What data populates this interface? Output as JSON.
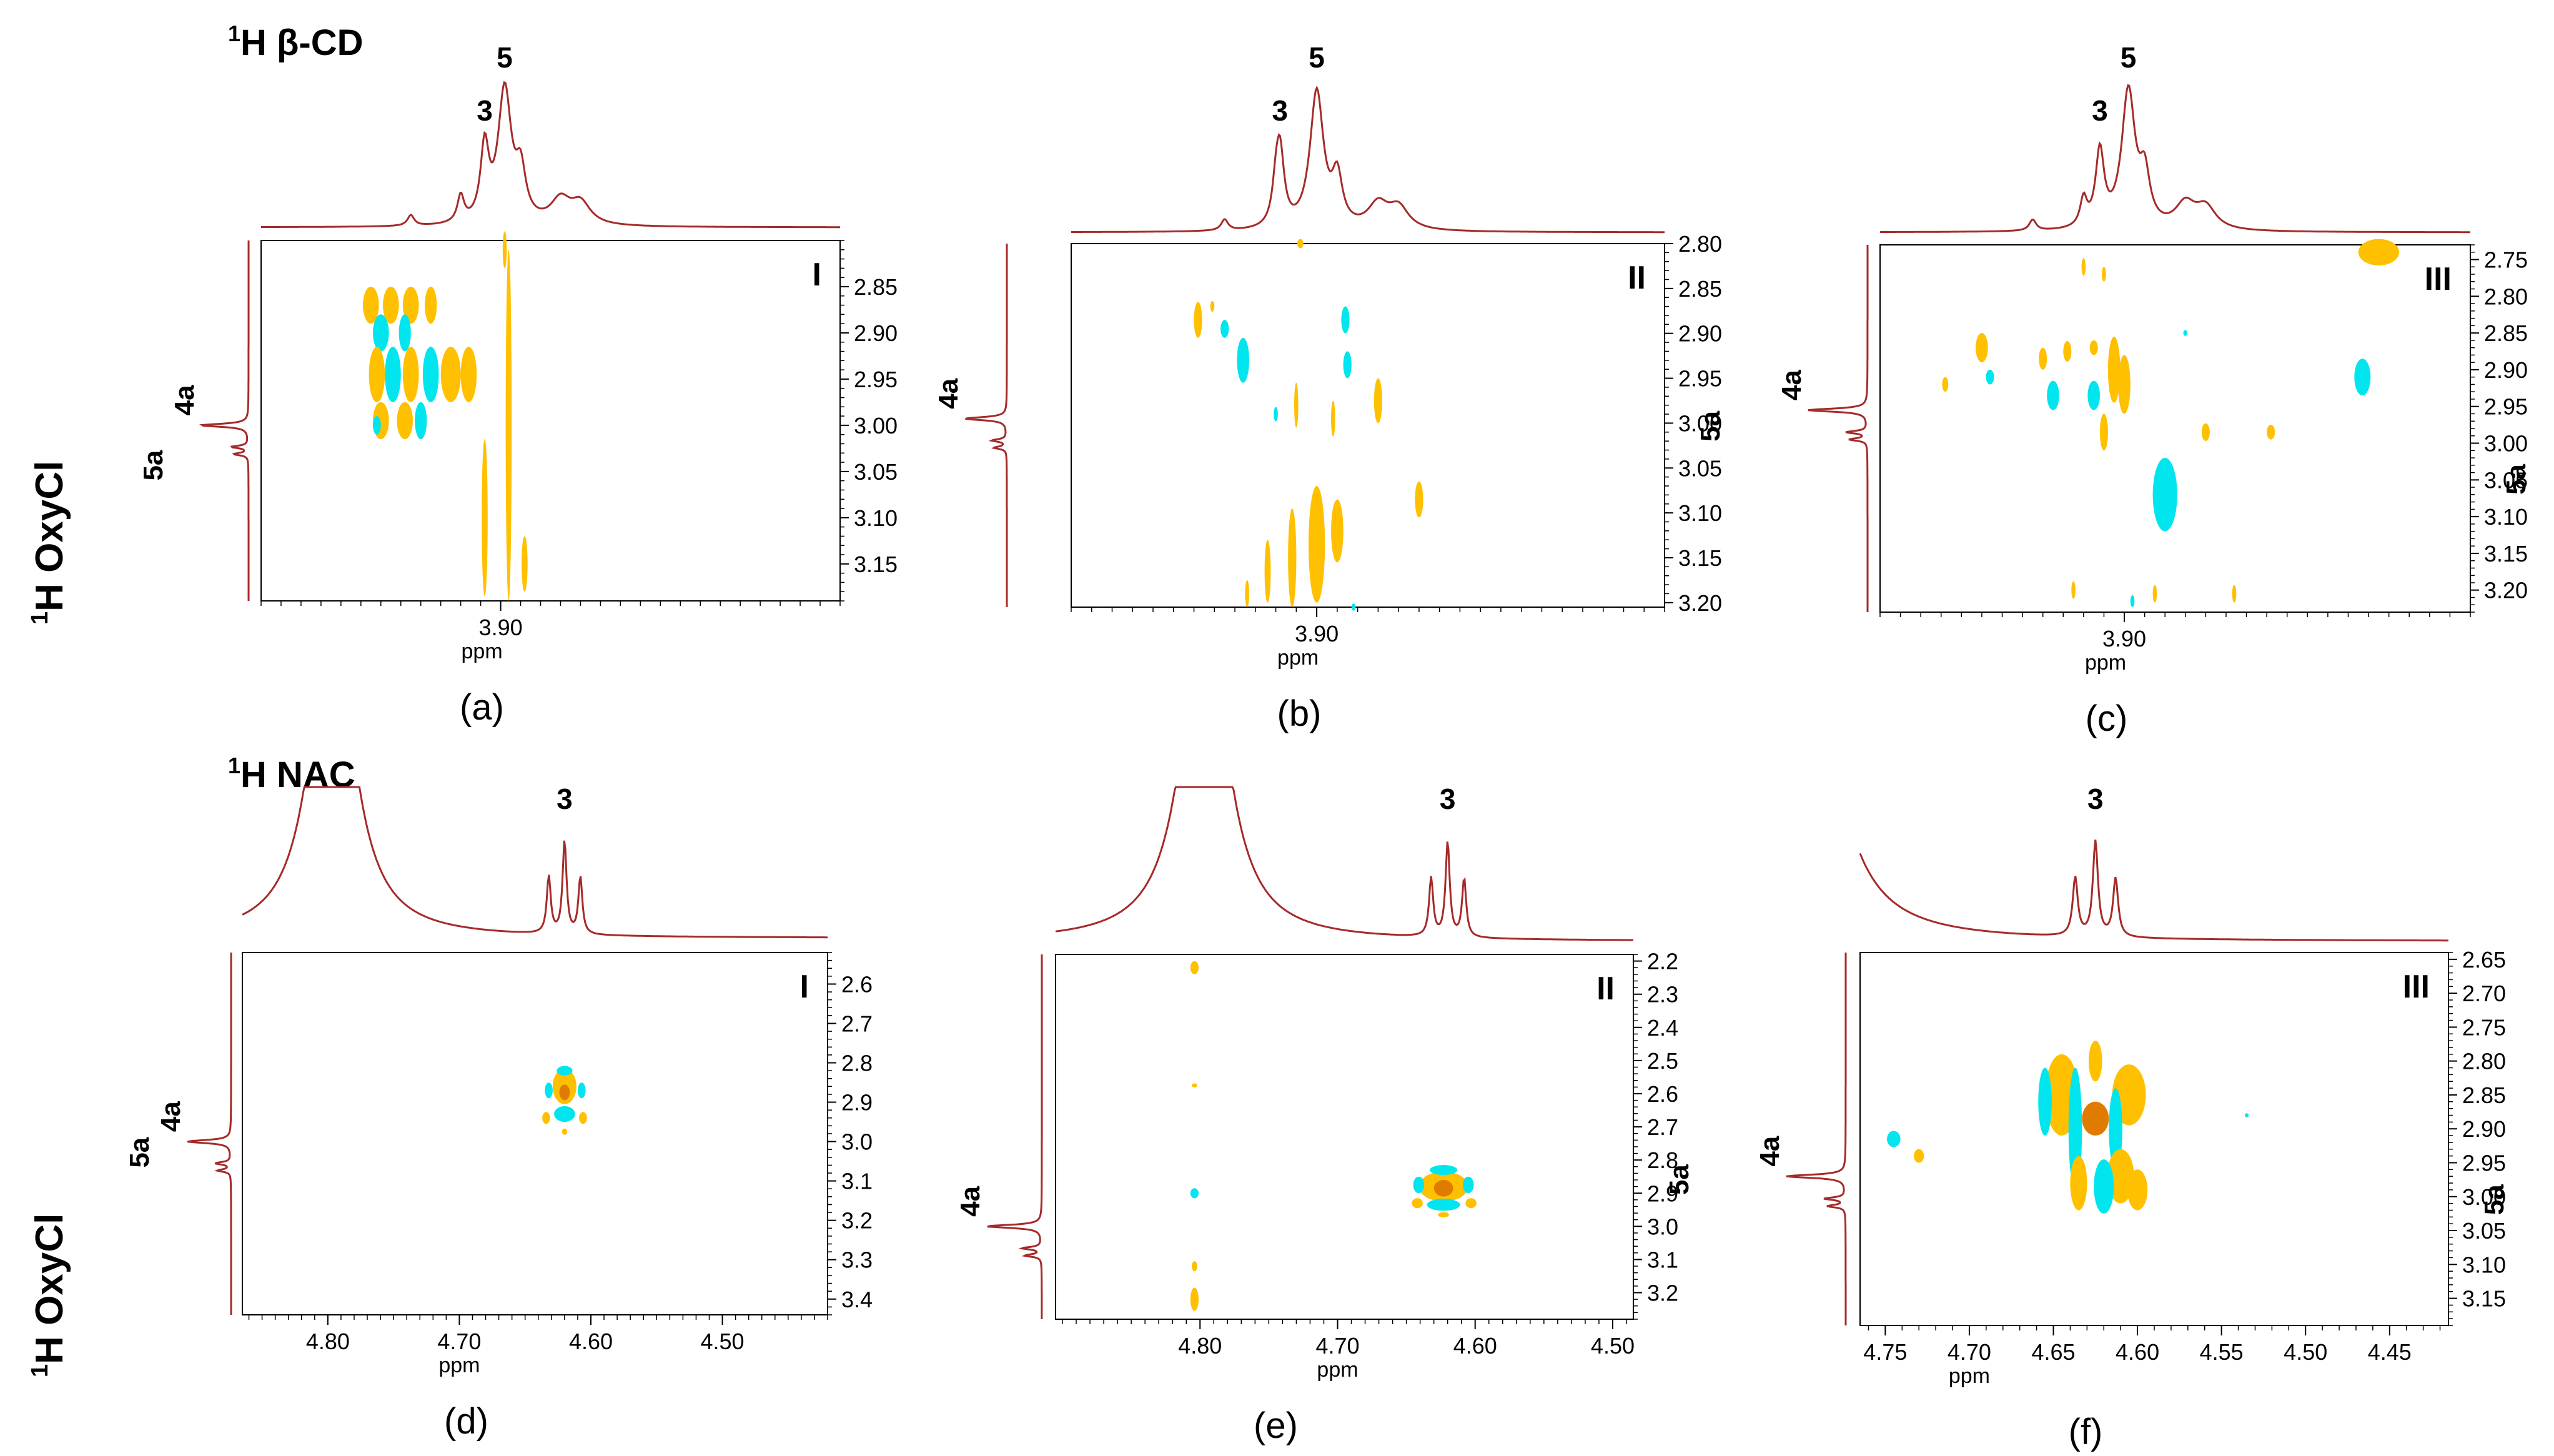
{
  "colors": {
    "trace": "#a52a2a",
    "positive": "#ffc000",
    "negative": "#00e5ee",
    "core": "#e07b00",
    "frame": "#000000"
  },
  "rows": [
    {
      "nucleus_label": "1H β-CD",
      "nucleus_sup": "1",
      "nucleus_text": "H β-CD",
      "side_sup": "1",
      "side_text": "H OxyCl"
    },
    {
      "nucleus_label": "1H NAC",
      "nucleus_sup": "1",
      "nucleus_text": "H NAC",
      "side_sup": "1",
      "side_text": "H OxyCl"
    }
  ],
  "chart_data": [
    {
      "type": "heatmap",
      "panel": "(a)",
      "roman": "I",
      "xlabel": "ppm",
      "x_ticks": [
        "3.90"
      ],
      "x_tick_values": [
        3.9
      ],
      "xlim": [
        4.02,
        3.73
      ],
      "y_ticks": [
        "2.85",
        "2.90",
        "2.95",
        "3.00",
        "3.05",
        "3.10",
        "3.15"
      ],
      "y_tick_values": [
        2.85,
        2.9,
        2.95,
        3.0,
        3.05,
        3.1,
        3.15
      ],
      "ylim": [
        2.8,
        3.19
      ],
      "top_peaks": [
        {
          "label": "3",
          "ppm": 3.908
        },
        {
          "label": "5",
          "ppm": 3.898
        }
      ],
      "side_peaks": [
        {
          "label": "4a",
          "ppm": 3.0
        },
        {
          "label": "5a",
          "ppm": 3.04
        }
      ],
      "blobs": [
        {
          "x": 3.965,
          "y": 2.87,
          "rx": 0.004,
          "ry": 0.02,
          "sign": 1
        },
        {
          "x": 3.955,
          "y": 2.87,
          "rx": 0.004,
          "ry": 0.02,
          "sign": 1
        },
        {
          "x": 3.945,
          "y": 2.87,
          "rx": 0.004,
          "ry": 0.02,
          "sign": 1
        },
        {
          "x": 3.935,
          "y": 2.87,
          "rx": 0.003,
          "ry": 0.02,
          "sign": 1
        },
        {
          "x": 3.96,
          "y": 2.9,
          "rx": 0.004,
          "ry": 0.02,
          "sign": -1
        },
        {
          "x": 3.948,
          "y": 2.9,
          "rx": 0.003,
          "ry": 0.02,
          "sign": -1
        },
        {
          "x": 3.962,
          "y": 2.945,
          "rx": 0.004,
          "ry": 0.03,
          "sign": 1
        },
        {
          "x": 3.954,
          "y": 2.945,
          "rx": 0.004,
          "ry": 0.03,
          "sign": -1
        },
        {
          "x": 3.945,
          "y": 2.945,
          "rx": 0.004,
          "ry": 0.03,
          "sign": 1
        },
        {
          "x": 3.935,
          "y": 2.945,
          "rx": 0.004,
          "ry": 0.03,
          "sign": -1
        },
        {
          "x": 3.925,
          "y": 2.945,
          "rx": 0.005,
          "ry": 0.03,
          "sign": 1
        },
        {
          "x": 3.916,
          "y": 2.945,
          "rx": 0.004,
          "ry": 0.03,
          "sign": 1
        },
        {
          "x": 3.96,
          "y": 2.995,
          "rx": 0.004,
          "ry": 0.02,
          "sign": 1
        },
        {
          "x": 3.948,
          "y": 2.995,
          "rx": 0.004,
          "ry": 0.02,
          "sign": 1
        },
        {
          "x": 3.94,
          "y": 2.995,
          "rx": 0.003,
          "ry": 0.02,
          "sign": -1
        },
        {
          "x": 3.962,
          "y": 3.0,
          "rx": 0.002,
          "ry": 0.01,
          "sign": -1
        },
        {
          "x": 3.908,
          "y": 3.1,
          "rx": 0.0015,
          "ry": 0.085,
          "sign": 1
        },
        {
          "x": 3.896,
          "y": 3.0,
          "rx": 0.0015,
          "ry": 0.19,
          "sign": 1
        },
        {
          "x": 3.898,
          "y": 2.81,
          "rx": 0.001,
          "ry": 0.02,
          "sign": 1
        },
        {
          "x": 3.888,
          "y": 3.15,
          "rx": 0.0015,
          "ry": 0.03,
          "sign": 1
        }
      ]
    },
    {
      "type": "heatmap",
      "panel": "(b)",
      "roman": "II",
      "xlabel": "ppm",
      "x_ticks": [
        "3.90"
      ],
      "x_tick_values": [
        3.9
      ],
      "xlim": [
        4.02,
        3.73
      ],
      "y_ticks": [
        "2.80",
        "2.85",
        "2.90",
        "2.95",
        "3.00",
        "3.05",
        "3.10",
        "3.15",
        "3.20"
      ],
      "y_tick_values": [
        2.8,
        2.85,
        2.9,
        2.95,
        3.0,
        3.05,
        3.1,
        3.15,
        3.2
      ],
      "ylim": [
        2.8,
        3.205
      ],
      "top_peaks": [
        {
          "label": "3",
          "ppm": 3.918
        },
        {
          "label": "5",
          "ppm": 3.9
        }
      ],
      "side_peaks": [
        {
          "label": "4a",
          "ppm": 2.995
        },
        {
          "label": "5a",
          "ppm": 3.0
        }
      ],
      "blobs": [
        {
          "x": 3.958,
          "y": 2.885,
          "rx": 0.002,
          "ry": 0.02,
          "sign": 1
        },
        {
          "x": 3.951,
          "y": 2.87,
          "rx": 0.001,
          "ry": 0.006,
          "sign": 1
        },
        {
          "x": 3.945,
          "y": 2.895,
          "rx": 0.002,
          "ry": 0.01,
          "sign": -1
        },
        {
          "x": 3.936,
          "y": 2.93,
          "rx": 0.003,
          "ry": 0.025,
          "sign": -1
        },
        {
          "x": 3.92,
          "y": 2.99,
          "rx": 0.001,
          "ry": 0.008,
          "sign": -1
        },
        {
          "x": 3.91,
          "y": 2.98,
          "rx": 0.001,
          "ry": 0.025,
          "sign": 1
        },
        {
          "x": 3.886,
          "y": 2.885,
          "rx": 0.002,
          "ry": 0.015,
          "sign": -1
        },
        {
          "x": 3.885,
          "y": 2.935,
          "rx": 0.002,
          "ry": 0.015,
          "sign": -1
        },
        {
          "x": 3.892,
          "y": 2.995,
          "rx": 0.001,
          "ry": 0.02,
          "sign": 1
        },
        {
          "x": 3.87,
          "y": 2.975,
          "rx": 0.002,
          "ry": 0.025,
          "sign": 1
        },
        {
          "x": 3.85,
          "y": 3.085,
          "rx": 0.002,
          "ry": 0.02,
          "sign": 1
        },
        {
          "x": 3.9,
          "y": 3.135,
          "rx": 0.004,
          "ry": 0.065,
          "sign": 1
        },
        {
          "x": 3.912,
          "y": 3.15,
          "rx": 0.002,
          "ry": 0.055,
          "sign": 1
        },
        {
          "x": 3.89,
          "y": 3.12,
          "rx": 0.003,
          "ry": 0.035,
          "sign": 1
        },
        {
          "x": 3.924,
          "y": 3.165,
          "rx": 0.0015,
          "ry": 0.035,
          "sign": 1
        },
        {
          "x": 3.934,
          "y": 3.19,
          "rx": 0.001,
          "ry": 0.015,
          "sign": 1
        },
        {
          "x": 3.908,
          "y": 2.8,
          "rx": 0.0015,
          "ry": 0.005,
          "sign": 1
        },
        {
          "x": 3.882,
          "y": 3.205,
          "rx": 0.001,
          "ry": 0.004,
          "sign": -1
        }
      ]
    },
    {
      "type": "heatmap",
      "panel": "(c)",
      "roman": "III",
      "xlabel": "ppm",
      "x_ticks": [
        "3.90"
      ],
      "x_tick_values": [
        3.9
      ],
      "xlim": [
        4.02,
        3.73
      ],
      "y_ticks": [
        "2.75",
        "2.80",
        "2.85",
        "2.90",
        "2.95",
        "3.00",
        "3.05",
        "3.10",
        "3.15",
        "3.20"
      ],
      "y_tick_values": [
        2.75,
        2.8,
        2.85,
        2.9,
        2.95,
        3.0,
        3.05,
        3.1,
        3.15,
        3.2
      ],
      "ylim": [
        2.73,
        3.23
      ],
      "top_peaks": [
        {
          "label": "3",
          "ppm": 3.912
        },
        {
          "label": "5",
          "ppm": 3.898
        }
      ],
      "side_peaks": [
        {
          "label": "4a",
          "ppm": 2.955
        },
        {
          "label": "5a",
          "ppm": 3.045
        }
      ],
      "blobs": [
        {
          "x": 3.775,
          "y": 2.74,
          "rx": 0.01,
          "ry": 0.018,
          "sign": 1
        },
        {
          "x": 3.92,
          "y": 2.76,
          "rx": 0.001,
          "ry": 0.012,
          "sign": 1
        },
        {
          "x": 3.91,
          "y": 2.77,
          "rx": 0.001,
          "ry": 0.01,
          "sign": 1
        },
        {
          "x": 3.97,
          "y": 2.87,
          "rx": 0.003,
          "ry": 0.02,
          "sign": 1
        },
        {
          "x": 3.966,
          "y": 2.91,
          "rx": 0.002,
          "ry": 0.01,
          "sign": -1
        },
        {
          "x": 3.988,
          "y": 2.92,
          "rx": 0.0015,
          "ry": 0.01,
          "sign": 1
        },
        {
          "x": 3.94,
          "y": 2.885,
          "rx": 0.002,
          "ry": 0.015,
          "sign": 1
        },
        {
          "x": 3.928,
          "y": 2.875,
          "rx": 0.002,
          "ry": 0.014,
          "sign": 1
        },
        {
          "x": 3.935,
          "y": 2.935,
          "rx": 0.003,
          "ry": 0.02,
          "sign": -1
        },
        {
          "x": 3.915,
          "y": 2.935,
          "rx": 0.003,
          "ry": 0.02,
          "sign": -1
        },
        {
          "x": 3.905,
          "y": 2.9,
          "rx": 0.003,
          "ry": 0.045,
          "sign": 1
        },
        {
          "x": 3.9,
          "y": 2.92,
          "rx": 0.003,
          "ry": 0.04,
          "sign": 1
        },
        {
          "x": 3.915,
          "y": 2.87,
          "rx": 0.002,
          "ry": 0.01,
          "sign": 1
        },
        {
          "x": 3.87,
          "y": 2.85,
          "rx": 0.001,
          "ry": 0.004,
          "sign": -1
        },
        {
          "x": 3.91,
          "y": 2.985,
          "rx": 0.002,
          "ry": 0.025,
          "sign": 1
        },
        {
          "x": 3.88,
          "y": 3.07,
          "rx": 0.006,
          "ry": 0.05,
          "sign": -1
        },
        {
          "x": 3.86,
          "y": 2.985,
          "rx": 0.002,
          "ry": 0.012,
          "sign": 1
        },
        {
          "x": 3.828,
          "y": 2.985,
          "rx": 0.002,
          "ry": 0.01,
          "sign": 1
        },
        {
          "x": 3.783,
          "y": 2.91,
          "rx": 0.004,
          "ry": 0.025,
          "sign": -1
        },
        {
          "x": 3.925,
          "y": 3.2,
          "rx": 0.001,
          "ry": 0.012,
          "sign": 1
        },
        {
          "x": 3.896,
          "y": 3.215,
          "rx": 0.001,
          "ry": 0.008,
          "sign": -1
        },
        {
          "x": 3.885,
          "y": 3.205,
          "rx": 0.001,
          "ry": 0.012,
          "sign": 1
        },
        {
          "x": 3.846,
          "y": 3.205,
          "rx": 0.001,
          "ry": 0.012,
          "sign": 1
        }
      ]
    },
    {
      "type": "heatmap",
      "panel": "(d)",
      "roman": "I",
      "xlabel": "ppm",
      "x_ticks": [
        "4.80",
        "4.70",
        "4.60",
        "4.50"
      ],
      "x_tick_values": [
        4.8,
        4.7,
        4.6,
        4.5
      ],
      "xlim": [
        4.865,
        4.42
      ],
      "y_ticks": [
        "2.6",
        "2.7",
        "2.8",
        "2.9",
        "3.0",
        "3.1",
        "3.2",
        "3.3",
        "3.4"
      ],
      "y_tick_values": [
        2.6,
        2.7,
        2.8,
        2.9,
        3.0,
        3.1,
        3.2,
        3.3,
        3.4
      ],
      "ylim": [
        2.52,
        3.44
      ],
      "top_peaks": [
        {
          "label": "3",
          "ppm": 4.62
        }
      ],
      "side_peaks": [
        {
          "label": "4a",
          "ppm": 3.0
        },
        {
          "label": "5a",
          "ppm": 3.02
        }
      ],
      "blobs": [
        {
          "x": 4.62,
          "y": 2.86,
          "rx": 0.009,
          "ry": 0.045,
          "sign": 1
        },
        {
          "x": 4.62,
          "y": 2.875,
          "rx": 0.004,
          "ry": 0.02,
          "sign": 0
        },
        {
          "x": 4.62,
          "y": 2.82,
          "rx": 0.006,
          "ry": 0.012,
          "sign": -1
        },
        {
          "x": 4.632,
          "y": 2.87,
          "rx": 0.003,
          "ry": 0.02,
          "sign": -1
        },
        {
          "x": 4.607,
          "y": 2.87,
          "rx": 0.003,
          "ry": 0.02,
          "sign": -1
        },
        {
          "x": 4.62,
          "y": 2.93,
          "rx": 0.008,
          "ry": 0.02,
          "sign": -1
        },
        {
          "x": 4.634,
          "y": 2.94,
          "rx": 0.003,
          "ry": 0.015,
          "sign": 1
        },
        {
          "x": 4.606,
          "y": 2.94,
          "rx": 0.003,
          "ry": 0.015,
          "sign": 1
        },
        {
          "x": 4.62,
          "y": 2.975,
          "rx": 0.002,
          "ry": 0.008,
          "sign": 1
        }
      ]
    },
    {
      "type": "heatmap",
      "panel": "(e)",
      "roman": "II",
      "xlabel": "ppm",
      "x_ticks": [
        "4.80",
        "4.70",
        "4.60",
        "4.50"
      ],
      "x_tick_values": [
        4.8,
        4.7,
        4.6,
        4.5
      ],
      "xlim": [
        4.905,
        4.485
      ],
      "y_ticks": [
        "2.2",
        "2.3",
        "2.4",
        "2.5",
        "2.6",
        "2.7",
        "2.8",
        "2.9",
        "3.0",
        "3.1",
        "3.2"
      ],
      "y_tick_values": [
        2.2,
        2.3,
        2.4,
        2.5,
        2.6,
        2.7,
        2.8,
        2.9,
        3.0,
        3.1,
        3.2
      ],
      "ylim": [
        2.18,
        3.28
      ],
      "top_peaks": [
        {
          "label": "3",
          "ppm": 4.62
        }
      ],
      "side_peaks": [
        {
          "label": "4a",
          "ppm": 3.0
        },
        {
          "label": "5a",
          "ppm": 2.85
        }
      ],
      "blobs": [
        {
          "x": 4.804,
          "y": 2.22,
          "rx": 0.003,
          "ry": 0.02,
          "sign": 1
        },
        {
          "x": 4.804,
          "y": 2.575,
          "rx": 0.002,
          "ry": 0.006,
          "sign": 1
        },
        {
          "x": 4.804,
          "y": 2.9,
          "rx": 0.003,
          "ry": 0.015,
          "sign": -1
        },
        {
          "x": 4.804,
          "y": 3.12,
          "rx": 0.002,
          "ry": 0.015,
          "sign": 1
        },
        {
          "x": 4.804,
          "y": 3.22,
          "rx": 0.003,
          "ry": 0.035,
          "sign": 1
        },
        {
          "x": 4.623,
          "y": 2.88,
          "rx": 0.018,
          "ry": 0.045,
          "sign": 1
        },
        {
          "x": 4.623,
          "y": 2.885,
          "rx": 0.007,
          "ry": 0.025,
          "sign": 0
        },
        {
          "x": 4.623,
          "y": 2.83,
          "rx": 0.01,
          "ry": 0.015,
          "sign": -1
        },
        {
          "x": 4.641,
          "y": 2.875,
          "rx": 0.004,
          "ry": 0.025,
          "sign": -1
        },
        {
          "x": 4.605,
          "y": 2.875,
          "rx": 0.004,
          "ry": 0.025,
          "sign": -1
        },
        {
          "x": 4.623,
          "y": 2.935,
          "rx": 0.012,
          "ry": 0.018,
          "sign": -1
        },
        {
          "x": 4.642,
          "y": 2.93,
          "rx": 0.004,
          "ry": 0.015,
          "sign": 1
        },
        {
          "x": 4.603,
          "y": 2.93,
          "rx": 0.004,
          "ry": 0.015,
          "sign": 1
        },
        {
          "x": 4.623,
          "y": 2.965,
          "rx": 0.004,
          "ry": 0.008,
          "sign": 1
        }
      ]
    },
    {
      "type": "heatmap",
      "panel": "(f)",
      "roman": "III",
      "xlabel": "ppm",
      "x_ticks": [
        "4.75",
        "4.70",
        "4.65",
        "4.60",
        "4.55",
        "4.50",
        "4.45"
      ],
      "x_tick_values": [
        4.75,
        4.7,
        4.65,
        4.6,
        4.55,
        4.5,
        4.45
      ],
      "xlim": [
        4.765,
        4.415
      ],
      "y_ticks": [
        "2.65",
        "2.70",
        "2.75",
        "2.80",
        "2.85",
        "2.90",
        "2.95",
        "3.00",
        "3.05",
        "3.10",
        "3.15"
      ],
      "y_tick_values": [
        2.65,
        2.7,
        2.75,
        2.8,
        2.85,
        2.9,
        2.95,
        3.0,
        3.05,
        3.1,
        3.15
      ],
      "ylim": [
        2.64,
        3.19
      ],
      "top_peaks": [
        {
          "label": "3",
          "ppm": 4.625
        }
      ],
      "side_peaks": [
        {
          "label": "4a",
          "ppm": 2.97
        },
        {
          "label": "5a",
          "ppm": 3.0
        }
      ],
      "blobs": [
        {
          "x": 4.645,
          "y": 2.85,
          "rx": 0.01,
          "ry": 0.06,
          "sign": 1
        },
        {
          "x": 4.605,
          "y": 2.85,
          "rx": 0.01,
          "ry": 0.045,
          "sign": 1
        },
        {
          "x": 4.625,
          "y": 2.885,
          "rx": 0.008,
          "ry": 0.025,
          "sign": 0
        },
        {
          "x": 4.637,
          "y": 2.9,
          "rx": 0.004,
          "ry": 0.09,
          "sign": -1
        },
        {
          "x": 4.613,
          "y": 2.9,
          "rx": 0.004,
          "ry": 0.06,
          "sign": -1
        },
        {
          "x": 4.655,
          "y": 2.86,
          "rx": 0.004,
          "ry": 0.05,
          "sign": -1
        },
        {
          "x": 4.61,
          "y": 2.97,
          "rx": 0.008,
          "ry": 0.04,
          "sign": 1
        },
        {
          "x": 4.6,
          "y": 2.99,
          "rx": 0.006,
          "ry": 0.03,
          "sign": 1
        },
        {
          "x": 4.62,
          "y": 2.985,
          "rx": 0.006,
          "ry": 0.04,
          "sign": -1
        },
        {
          "x": 4.635,
          "y": 2.98,
          "rx": 0.005,
          "ry": 0.04,
          "sign": 1
        },
        {
          "x": 4.625,
          "y": 2.8,
          "rx": 0.004,
          "ry": 0.03,
          "sign": 1
        },
        {
          "x": 4.745,
          "y": 2.915,
          "rx": 0.004,
          "ry": 0.012,
          "sign": -1
        },
        {
          "x": 4.73,
          "y": 2.94,
          "rx": 0.003,
          "ry": 0.01,
          "sign": 1
        },
        {
          "x": 4.535,
          "y": 2.88,
          "rx": 0.0008,
          "ry": 0.003,
          "sign": -1
        }
      ]
    }
  ]
}
